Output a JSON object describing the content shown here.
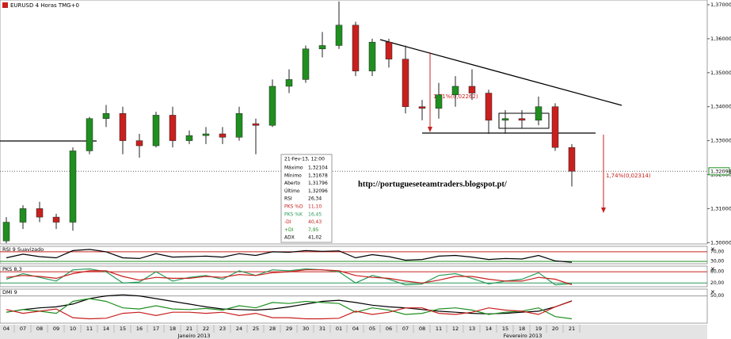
{
  "chart_data": [
    {
      "type": "candlestick",
      "title": "EURUSD 4 Horas TMG+0",
      "categories": [
        "04",
        "07",
        "08",
        "09",
        "10",
        "11",
        "14",
        "15",
        "16",
        "17",
        "18",
        "21",
        "22",
        "23",
        "24",
        "25",
        "28",
        "29",
        "30",
        "31",
        "01",
        "04",
        "05",
        "06",
        "07",
        "08",
        "11",
        "12",
        "13",
        "14",
        "15",
        "18",
        "19",
        "20",
        "21"
      ],
      "months": [
        "Janeiro 2013",
        "Fevereiro 2013"
      ],
      "open": [
        1.3005,
        1.306,
        1.31,
        1.3075,
        1.306,
        1.327,
        1.3365,
        1.338,
        1.33,
        1.3285,
        1.3375,
        1.33,
        1.3315,
        1.332,
        1.331,
        1.335,
        1.3345,
        1.346,
        1.348,
        1.357,
        1.358,
        1.364,
        1.3505,
        1.359,
        1.354,
        1.34,
        1.3395,
        1.3435,
        1.346,
        1.344,
        1.336,
        1.3365,
        1.336,
        1.34,
        1.328
      ],
      "high": [
        1.3075,
        1.311,
        1.312,
        1.3085,
        1.328,
        1.337,
        1.3405,
        1.34,
        1.332,
        1.3385,
        1.34,
        1.333,
        1.334,
        1.334,
        1.34,
        1.3365,
        1.348,
        1.351,
        1.358,
        1.362,
        1.371,
        1.365,
        1.36,
        1.36,
        1.358,
        1.342,
        1.347,
        1.349,
        1.351,
        1.345,
        1.339,
        1.339,
        1.343,
        1.341,
        1.329
      ],
      "low": [
        1.2998,
        1.304,
        1.306,
        1.304,
        1.3035,
        1.326,
        1.334,
        1.326,
        1.325,
        1.328,
        1.328,
        1.329,
        1.329,
        1.329,
        1.33,
        1.326,
        1.334,
        1.344,
        1.347,
        1.3545,
        1.357,
        1.349,
        1.349,
        1.3515,
        1.338,
        1.336,
        1.3365,
        1.34,
        1.342,
        1.332,
        1.332,
        1.3335,
        1.3345,
        1.327,
        1.3165
      ],
      "close": [
        1.306,
        1.31,
        1.3075,
        1.306,
        1.327,
        1.3365,
        1.338,
        1.33,
        1.3285,
        1.3375,
        1.33,
        1.3315,
        1.332,
        1.331,
        1.338,
        1.3345,
        1.346,
        1.348,
        1.357,
        1.358,
        1.364,
        1.3505,
        1.359,
        1.354,
        1.34,
        1.3395,
        1.3435,
        1.346,
        1.344,
        1.336,
        1.3365,
        1.336,
        1.34,
        1.328,
        1.321
      ],
      "up_color": "#1f8f1f",
      "down_color": "#c8201e",
      "ylim": [
        1.2996,
        1.3714
      ],
      "yticks": [
        {
          "value": 1.3,
          "label": "1,30000"
        },
        {
          "value": 1.31,
          "label": "1,31000"
        },
        {
          "value": 1.32,
          "label": "1,32000"
        },
        {
          "value": 1.33,
          "label": "1,33000"
        },
        {
          "value": 1.34,
          "label": "1,34000"
        },
        {
          "value": 1.35,
          "label": "1,35000"
        },
        {
          "value": 1.36,
          "label": "1,36000"
        },
        {
          "value": 1.37,
          "label": "1,37000"
        }
      ],
      "last_price": {
        "value": 1.32098,
        "label": "1,32098"
      },
      "annotations": [
        "1,71%(0,02262)",
        "1,74%(0,02314)"
      ],
      "watermark": "http://portugueseteamtraders.blogspot.pt/",
      "info_box": {
        "date": "21-Fev-13, 12:00",
        "rows": [
          {
            "label": "Máximo",
            "value": "1,32104",
            "color": "#000000"
          },
          {
            "label": "Mínimo",
            "value": "1,31678",
            "color": "#000000"
          },
          {
            "label": "Aberto",
            "value": "1,31796",
            "color": "#000000"
          },
          {
            "label": "Último",
            "value": "1,32096",
            "color": "#000000"
          },
          {
            "label": "RSI",
            "value": "26,34",
            "color": "#000000"
          },
          {
            "label": "PKS %D",
            "value": "11,10",
            "color": "#c8201e"
          },
          {
            "label": "PKS %K",
            "value": "16,45",
            "color": "#2a9a5a"
          },
          {
            "label": "-DI",
            "value": "40,43",
            "color": "#c8201e"
          },
          {
            "label": "+DI",
            "value": "7,95",
            "color": "#1f8f1f"
          },
          {
            "label": "ADX",
            "value": "41,02",
            "color": "#000000"
          }
        ]
      }
    },
    {
      "type": "line",
      "title": "RSI 9 Suavizado",
      "ylim": [
        20,
        93
      ],
      "yticks": [
        {
          "value": 70,
          "label": "70,00",
          "color": "#c8201e"
        },
        {
          "value": 30,
          "label": "30,00",
          "color": "#1f8f1f"
        }
      ],
      "series": [
        {
          "color": "#000000",
          "values": [
            45,
            60,
            50,
            45,
            75,
            80,
            70,
            45,
            42,
            62,
            48,
            50,
            52,
            48,
            62,
            55,
            70,
            68,
            75,
            72,
            74,
            45,
            58,
            50,
            35,
            38,
            52,
            55,
            48,
            38,
            42,
            40,
            55,
            32,
            26.34
          ]
        }
      ]
    },
    {
      "type": "line",
      "title": "PKS 8,3",
      "ylim": [
        0,
        110
      ],
      "yticks": [
        {
          "value": 80,
          "label": "80,00",
          "color": "#c8201e"
        },
        {
          "value": 20,
          "label": "20,00",
          "color": "#2a9a5a"
        }
      ],
      "series": [
        {
          "color": "#2a9a5a",
          "values": [
            40,
            70,
            50,
            30,
            90,
            95,
            80,
            20,
            25,
            80,
            30,
            50,
            60,
            40,
            85,
            60,
            90,
            85,
            95,
            90,
            80,
            20,
            60,
            40,
            10,
            15,
            60,
            70,
            45,
            15,
            30,
            40,
            75,
            10,
            16.45
          ]
        },
        {
          "color": "#c8201e",
          "values": [
            50,
            60,
            55,
            45,
            70,
            85,
            85,
            55,
            35,
            50,
            45,
            45,
            55,
            50,
            65,
            60,
            75,
            80,
            90,
            90,
            85,
            60,
            50,
            45,
            30,
            20,
            35,
            55,
            55,
            40,
            30,
            30,
            50,
            40,
            11.1
          ]
        }
      ]
    },
    {
      "type": "line",
      "title": "DMI 9",
      "ylim": [
        0,
        62.5
      ],
      "yticks": [
        {
          "value": 50,
          "label": "50,00",
          "color": "#999999"
        }
      ],
      "series": [
        {
          "color": "#000000",
          "values": [
            20,
            25,
            28,
            30,
            35,
            45,
            50,
            52,
            50,
            45,
            40,
            35,
            30,
            26,
            25,
            24,
            26,
            30,
            35,
            40,
            42,
            38,
            33,
            30,
            28,
            25,
            22,
            20,
            18,
            17,
            18,
            20,
            22,
            30,
            41.02
          ]
        },
        {
          "color": "#1f8f1f",
          "values": [
            20,
            25,
            22,
            18,
            40,
            45,
            40,
            28,
            26,
            32,
            26,
            25,
            27,
            24,
            32,
            28,
            38,
            36,
            40,
            38,
            36,
            20,
            28,
            24,
            16,
            18,
            26,
            28,
            24,
            16,
            20,
            22,
            28,
            12,
            7.95
          ]
        },
        {
          "color": "#c8201e",
          "values": [
            25,
            18,
            22,
            26,
            10,
            8,
            9,
            18,
            20,
            14,
            20,
            20,
            18,
            20,
            14,
            18,
            10,
            10,
            8,
            8,
            9,
            22,
            16,
            20,
            28,
            28,
            18,
            16,
            20,
            28,
            24,
            22,
            16,
            30,
            40.43
          ]
        }
      ]
    }
  ]
}
